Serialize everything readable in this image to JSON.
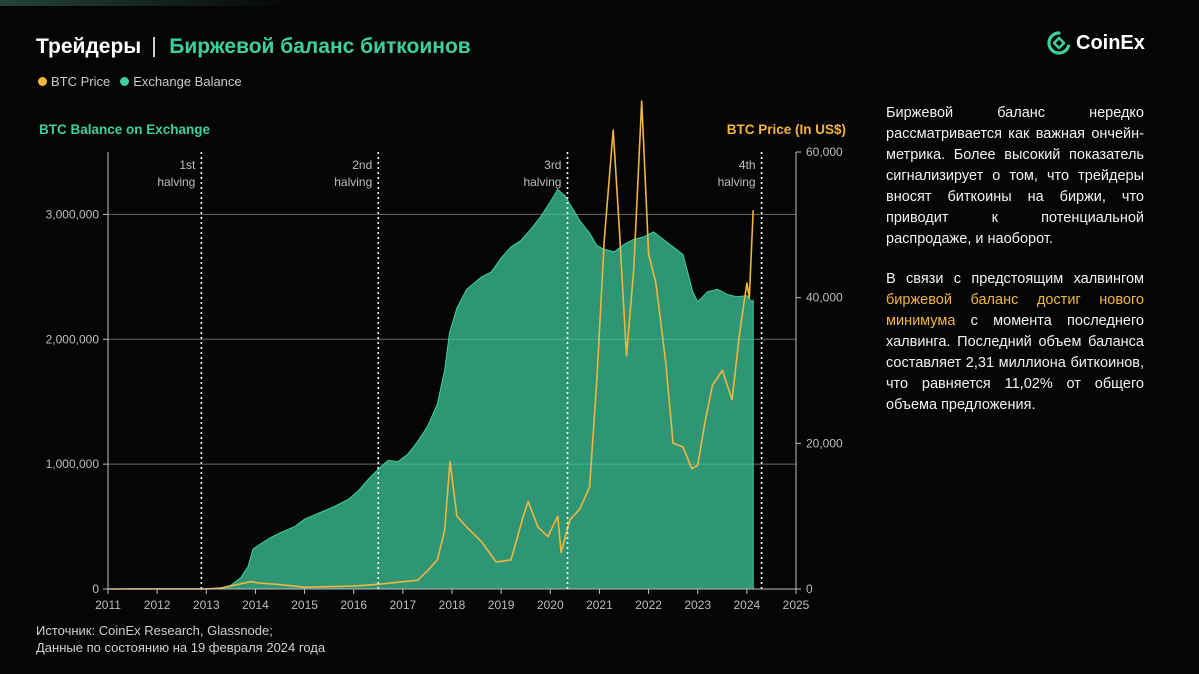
{
  "header": {
    "title": "Трейдеры",
    "subtitle": "Биржевой баланс биткоинов",
    "logo_text": "CoinEx"
  },
  "legend": {
    "items": [
      {
        "label": "BTC Price",
        "color": "#f2b53d"
      },
      {
        "label": "Exchange Balance",
        "color": "#3ecfa0"
      }
    ]
  },
  "side": {
    "p1": "Биржевой баланс нередко рассматривается как важная ончейн-метрика. Более высокий показатель сигнализирует о том, что трейдеры вносят биткоины на биржи, что приводит к потенциальной распродаже, и наоборот.",
    "p2_pre": "В связи с предстоящим халвингом ",
    "p2_hl": "биржевой баланс достиг нового минимума",
    "p2_post": " с момента последнего халвинга. Последний объем баланса составляет 2,31 миллиона биткоинов, что равняется 11,02% от общего объема предложения."
  },
  "source": {
    "line1": "Источник: CoinEx Research, Glassnode;",
    "line2": "Данные по состоянию на 19 февраля 2024 года"
  },
  "chart_data": {
    "type": "area",
    "left_axis_title": "BTC Balance on Exchange",
    "right_axis_title": "BTC Price (In US$)",
    "x_range": [
      2011,
      2025
    ],
    "x_ticks": [
      "2011",
      "2012",
      "2013",
      "2014",
      "2015",
      "2016",
      "2017",
      "2018",
      "2019",
      "2020",
      "2021",
      "2022",
      "2023",
      "2024",
      "2025"
    ],
    "left_range": [
      0,
      3500000
    ],
    "left_ticks": [
      {
        "value": 0,
        "label": "0"
      },
      {
        "value": 1000000,
        "label": "1,000,000"
      },
      {
        "value": 2000000,
        "label": "2,000,000"
      },
      {
        "value": 3000000,
        "label": "3,000,000"
      }
    ],
    "right_range": [
      0,
      60000
    ],
    "right_ticks": [
      {
        "value": 0,
        "label": "0"
      },
      {
        "value": 20000,
        "label": "20,000"
      },
      {
        "value": 40000,
        "label": "40,000"
      },
      {
        "value": 60000,
        "label": "60,000"
      }
    ],
    "halvings": [
      {
        "x": 2012.9,
        "line1": "1st",
        "line2": "halving"
      },
      {
        "x": 2016.5,
        "line1": "2nd",
        "line2": "halving"
      },
      {
        "x": 2020.35,
        "line1": "3rd",
        "line2": "halving"
      },
      {
        "x": 2024.3,
        "line1": "4th",
        "line2": "halving"
      }
    ],
    "series": [
      {
        "name": "Exchange Balance",
        "color": "#3ecfa0",
        "points": [
          [
            2013.2,
            0
          ],
          [
            2013.5,
            30000
          ],
          [
            2013.7,
            90000
          ],
          [
            2013.85,
            180000
          ],
          [
            2013.95,
            320000
          ],
          [
            2014.1,
            360000
          ],
          [
            2014.3,
            410000
          ],
          [
            2014.5,
            450000
          ],
          [
            2014.8,
            500000
          ],
          [
            2015.0,
            560000
          ],
          [
            2015.3,
            610000
          ],
          [
            2015.6,
            660000
          ],
          [
            2015.9,
            720000
          ],
          [
            2016.1,
            790000
          ],
          [
            2016.3,
            880000
          ],
          [
            2016.5,
            960000
          ],
          [
            2016.7,
            1030000
          ],
          [
            2016.9,
            1020000
          ],
          [
            2017.1,
            1080000
          ],
          [
            2017.3,
            1180000
          ],
          [
            2017.5,
            1300000
          ],
          [
            2017.7,
            1480000
          ],
          [
            2017.85,
            1750000
          ],
          [
            2017.95,
            2050000
          ],
          [
            2018.1,
            2250000
          ],
          [
            2018.3,
            2400000
          ],
          [
            2018.6,
            2500000
          ],
          [
            2018.8,
            2540000
          ],
          [
            2019.0,
            2650000
          ],
          [
            2019.2,
            2740000
          ],
          [
            2019.4,
            2790000
          ],
          [
            2019.6,
            2880000
          ],
          [
            2019.8,
            2980000
          ],
          [
            2020.0,
            3100000
          ],
          [
            2020.15,
            3200000
          ],
          [
            2020.3,
            3150000
          ],
          [
            2020.45,
            3050000
          ],
          [
            2020.6,
            2950000
          ],
          [
            2020.8,
            2850000
          ],
          [
            2020.95,
            2750000
          ],
          [
            2021.1,
            2720000
          ],
          [
            2021.3,
            2700000
          ],
          [
            2021.5,
            2760000
          ],
          [
            2021.7,
            2800000
          ],
          [
            2021.9,
            2820000
          ],
          [
            2022.1,
            2860000
          ],
          [
            2022.3,
            2800000
          ],
          [
            2022.5,
            2740000
          ],
          [
            2022.7,
            2680000
          ],
          [
            2022.9,
            2380000
          ],
          [
            2023.0,
            2300000
          ],
          [
            2023.2,
            2380000
          ],
          [
            2023.4,
            2400000
          ],
          [
            2023.6,
            2360000
          ],
          [
            2023.8,
            2340000
          ],
          [
            2024.0,
            2350000
          ],
          [
            2024.1,
            2300000
          ],
          [
            2024.13,
            2310000
          ]
        ]
      },
      {
        "name": "BTC Price",
        "color": "#f2b53d",
        "points": [
          [
            2011.0,
            5
          ],
          [
            2012.0,
            8
          ],
          [
            2013.0,
            20
          ],
          [
            2013.3,
            120
          ],
          [
            2013.9,
            1000
          ],
          [
            2014.1,
            800
          ],
          [
            2014.5,
            600
          ],
          [
            2015.0,
            250
          ],
          [
            2016.0,
            400
          ],
          [
            2016.5,
            650
          ],
          [
            2017.0,
            1000
          ],
          [
            2017.3,
            1200
          ],
          [
            2017.5,
            2500
          ],
          [
            2017.7,
            4000
          ],
          [
            2017.85,
            8000
          ],
          [
            2017.96,
            17500
          ],
          [
            2018.1,
            10000
          ],
          [
            2018.3,
            8500
          ],
          [
            2018.6,
            6500
          ],
          [
            2018.9,
            3700
          ],
          [
            2019.2,
            4000
          ],
          [
            2019.45,
            10000
          ],
          [
            2019.55,
            12000
          ],
          [
            2019.75,
            8500
          ],
          [
            2019.95,
            7200
          ],
          [
            2020.15,
            10000
          ],
          [
            2020.22,
            5000
          ],
          [
            2020.4,
            9500
          ],
          [
            2020.6,
            11000
          ],
          [
            2020.8,
            14000
          ],
          [
            2020.95,
            29000
          ],
          [
            2021.1,
            48000
          ],
          [
            2021.28,
            63000
          ],
          [
            2021.4,
            50000
          ],
          [
            2021.55,
            32000
          ],
          [
            2021.7,
            44000
          ],
          [
            2021.86,
            67000
          ],
          [
            2022.0,
            46000
          ],
          [
            2022.15,
            42000
          ],
          [
            2022.35,
            31000
          ],
          [
            2022.5,
            20000
          ],
          [
            2022.7,
            19500
          ],
          [
            2022.88,
            16500
          ],
          [
            2023.0,
            17000
          ],
          [
            2023.15,
            23000
          ],
          [
            2023.3,
            28000
          ],
          [
            2023.5,
            30000
          ],
          [
            2023.7,
            26000
          ],
          [
            2023.85,
            35000
          ],
          [
            2024.0,
            42000
          ],
          [
            2024.05,
            40000
          ],
          [
            2024.13,
            52000
          ]
        ]
      }
    ]
  }
}
